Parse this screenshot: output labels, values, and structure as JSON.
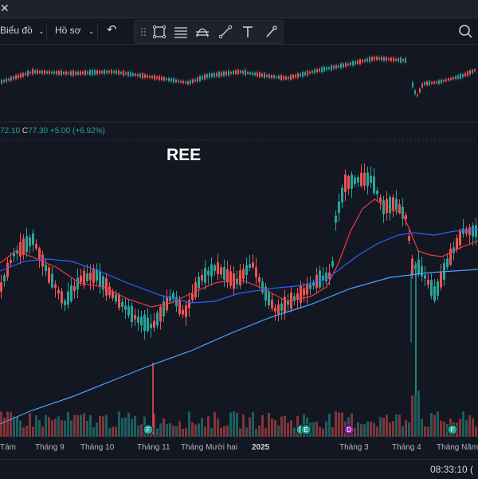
{
  "window": {
    "close_glyph": "✕"
  },
  "toolbar": {
    "chart_type_label": "Biểu đồ",
    "profile_label": "Hồ sơ",
    "undo_icon": "undo-icon",
    "right_icon": "search-replay-icon"
  },
  "drawing_tools": [
    "drag-handle-icon",
    "rectangle-icon",
    "lines-icon",
    "path-icon",
    "trendline-icon",
    "text-icon",
    "brush-icon"
  ],
  "legend": {
    "partial_value": "72.10",
    "close_prefix": "C",
    "close_value": "77.30",
    "change": "+5.00 (+6.92%)"
  },
  "symbol": "REE",
  "x_axis_labels": [
    "Tám",
    "Tháng 9",
    "Tháng 10",
    "Tháng 11",
    "Tháng Mười hai",
    "2025",
    "Tháng 3",
    "Tháng 4",
    "Tháng Năm"
  ],
  "clock": "08:33:10 (",
  "event_markers": [
    {
      "label": "F",
      "color": "#26a69a"
    },
    {
      "label": "F",
      "color": "#26a69a"
    },
    {
      "label": "E",
      "color": "#26a69a"
    },
    {
      "label": "D",
      "color": "#9c27b0"
    },
    {
      "label": "F",
      "color": "#26a69a"
    }
  ],
  "colors": {
    "up": "#26a69a",
    "down": "#ef5350",
    "ma_fast": "#f23645",
    "ma_mid": "#2962ff",
    "ma_slow": "#4aa3ff",
    "background": "#131722"
  }
}
